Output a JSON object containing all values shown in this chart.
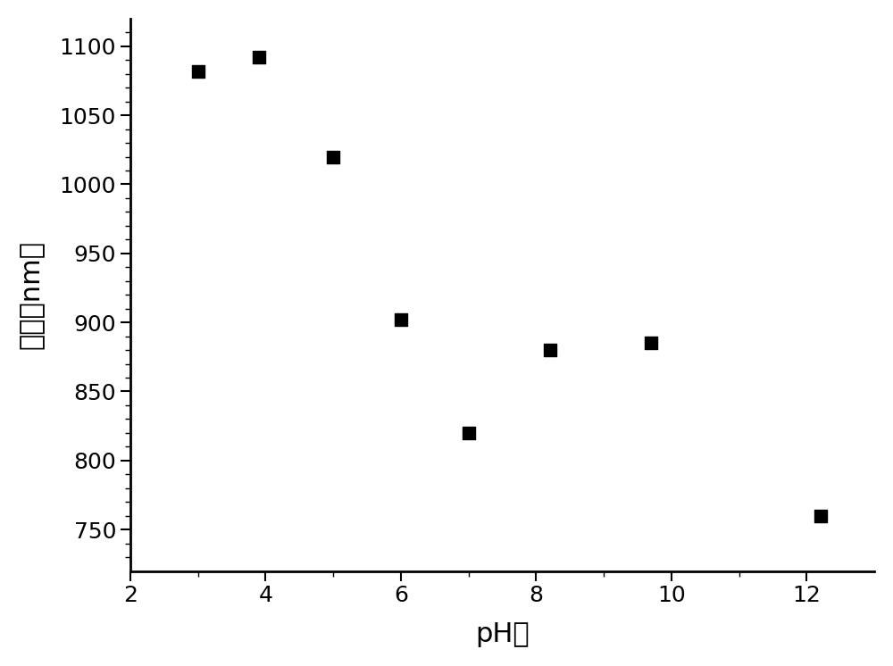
{
  "x_values": [
    3.0,
    3.9,
    5.0,
    6.0,
    7.0,
    8.2,
    9.7,
    12.2
  ],
  "y_values": [
    1082,
    1092,
    1020,
    902,
    820,
    880,
    885,
    760
  ],
  "xlim": [
    2,
    13
  ],
  "ylim": [
    720,
    1120
  ],
  "xticks": [
    2,
    4,
    6,
    8,
    10,
    12
  ],
  "yticks": [
    750,
    800,
    850,
    900,
    950,
    1000,
    1050,
    1100
  ],
  "xlabel": "pH値",
  "ylabel": "粒径（nm）",
  "marker": "s",
  "marker_color": "#000000",
  "marker_size": 100,
  "background_color": "#ffffff",
  "spine_color": "#000000",
  "tick_fontsize": 18,
  "label_fontsize": 22,
  "minor_yticks": [
    730,
    740,
    760,
    770,
    780,
    790,
    810,
    820,
    830,
    840,
    860,
    870,
    880,
    890,
    910,
    920,
    930,
    940,
    960,
    970,
    980,
    990,
    1010,
    1020,
    1030,
    1040,
    1060,
    1070,
    1080,
    1090,
    1110
  ]
}
